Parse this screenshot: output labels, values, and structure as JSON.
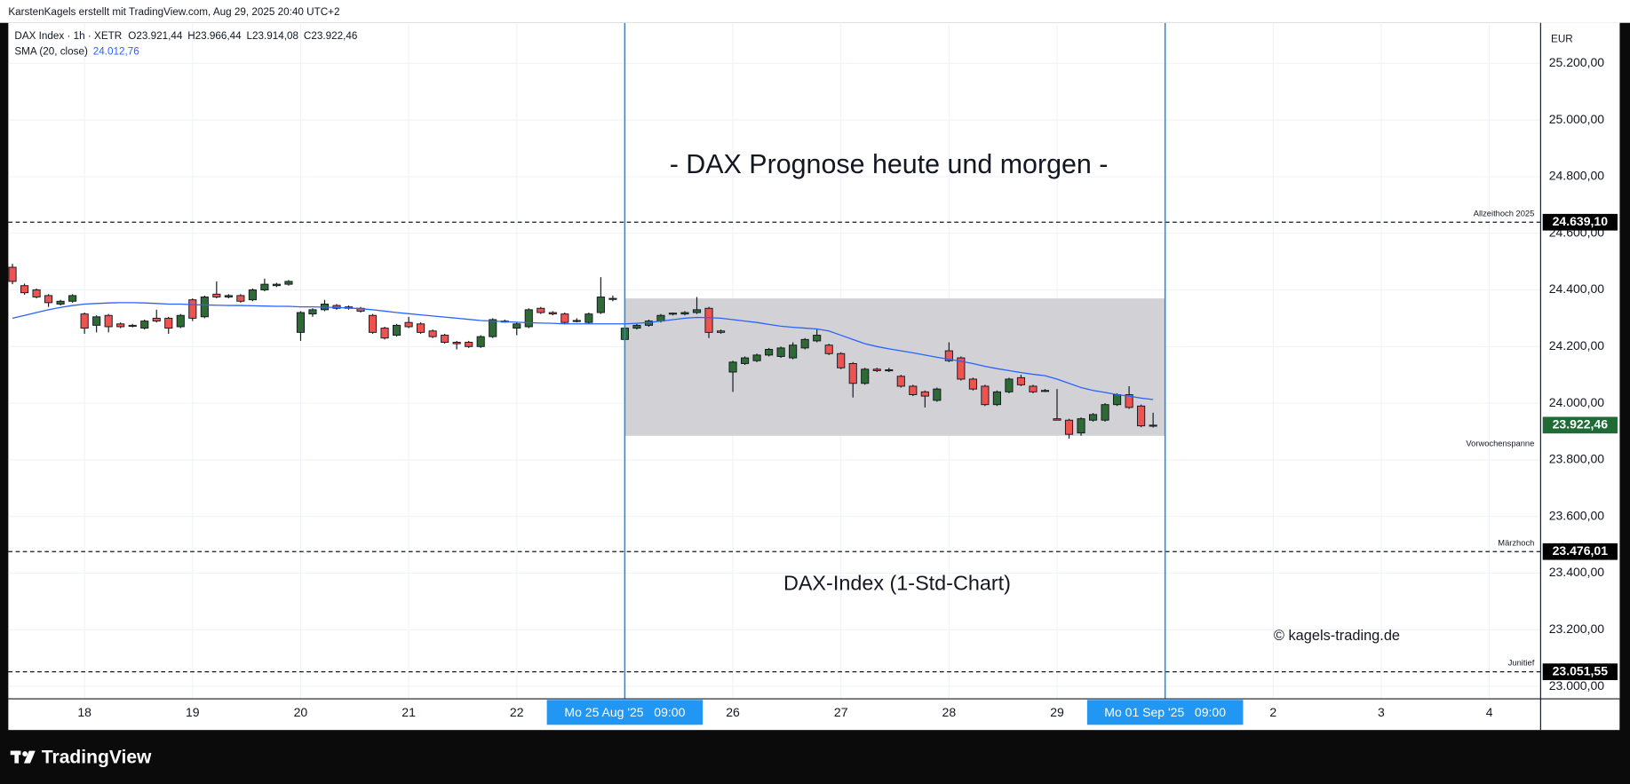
{
  "chart_data": {
    "type": "candlestick",
    "header": "KarstenKagels erstellt mit TradingView.com, Aug 29, 2025 20:40 UTC+2",
    "legend": {
      "symbol": "DAX Index · 1h · XETR",
      "open": "O23.921,44",
      "high": "H23.966,44",
      "low": "L23.914,08",
      "close": "C23.922,46",
      "sma_value": "24.012,76"
    },
    "title": "- DAX Prognose heute und morgen -",
    "subtitle": "DAX-Index (1-Std-Chart)",
    "copyright": "© kagels-trading.de",
    "currency": "EUR",
    "footer": "TradingView",
    "categories": [
      null,
      null,
      null,
      null,
      null,
      null,
      "18",
      null,
      null,
      null,
      null,
      null,
      null,
      null,
      null,
      "19",
      null,
      null,
      null,
      null,
      null,
      null,
      null,
      null,
      "20",
      null,
      null,
      null,
      null,
      null,
      null,
      null,
      null,
      "21",
      null,
      null,
      null,
      null,
      null,
      null,
      null,
      null,
      "22",
      null,
      null,
      null,
      null,
      null,
      null,
      null,
      null,
      "Mo 25 Aug '25   09:00",
      null,
      null,
      null,
      null,
      null,
      null,
      null,
      null,
      "26",
      null,
      null,
      null,
      null,
      null,
      null,
      null,
      null,
      "27",
      null,
      null,
      null,
      null,
      null,
      null,
      null,
      null,
      "28",
      null,
      null,
      null,
      null,
      null,
      null,
      null,
      null,
      "29",
      null,
      null,
      null,
      null,
      null,
      null,
      null,
      null,
      "Mo 01 Sep '25   09:00",
      null,
      null,
      null,
      null,
      null,
      null,
      null,
      null,
      "2",
      null,
      null,
      null,
      null,
      null,
      null,
      null,
      null,
      "3",
      null,
      null,
      null,
      null,
      null,
      null,
      null,
      null,
      "4",
      null,
      null,
      null,
      null
    ],
    "vertical_lines": [
      "Mo 25 Aug '25   09:00",
      "Mo 01 Sep '25   09:00"
    ],
    "open": [
      24480,
      24415,
      24400,
      24380,
      24350,
      24360,
      24315,
      24275,
      24310,
      24280,
      24275,
      24265,
      24300,
      24300,
      24270,
      24365,
      24305,
      24385,
      24375,
      24380,
      24365,
      24400,
      24415,
      24420,
      24250,
      24315,
      24330,
      24345,
      24340,
      24335,
      24310,
      24265,
      24240,
      24285,
      24280,
      24255,
      24240,
      24215,
      24215,
      24200,
      24235,
      24290,
      24265,
      24270,
      24335,
      24320,
      24315,
      24290,
      24285,
      24320,
      24370,
      24225,
      24265,
      24275,
      24290,
      24315,
      24315,
      24320,
      24335,
      24255,
      24110,
      24140,
      24150,
      24170,
      24165,
      24160,
      24195,
      24220,
      24205,
      24175,
      24140,
      24070,
      24120,
      24115,
      24095,
      24060,
      24040,
      24010,
      24185,
      24160,
      24085,
      24060,
      23995,
      24040,
      24090,
      24060,
      24045,
      23945,
      23940,
      23895,
      23940,
      23940,
      23995,
      24030,
      23990,
      23921.44,
      null,
      null,
      null,
      null,
      null,
      null,
      null,
      null,
      null,
      null,
      null,
      null,
      null,
      null,
      null,
      null,
      null,
      null,
      null,
      null,
      null,
      null,
      null,
      null,
      null,
      null,
      null,
      null,
      null,
      null,
      null,
      null
    ],
    "high": [
      24492,
      24422,
      24405,
      24385,
      24365,
      24385,
      24320,
      24310,
      24315,
      24285,
      24280,
      24295,
      24330,
      24305,
      24315,
      24370,
      24380,
      24430,
      24385,
      24385,
      24405,
      24440,
      24425,
      24435,
      24325,
      24335,
      24365,
      24350,
      24345,
      24340,
      24315,
      24270,
      24280,
      24305,
      24285,
      24260,
      24245,
      24220,
      24220,
      24240,
      24300,
      24295,
      24285,
      24335,
      24340,
      24325,
      24320,
      24300,
      24320,
      24445,
      24380,
      24270,
      24280,
      24295,
      24315,
      24320,
      24325,
      24375,
      24340,
      24260,
      24150,
      24165,
      24175,
      24195,
      24200,
      24215,
      24230,
      24260,
      24210,
      24180,
      24145,
      24125,
      24125,
      24125,
      24100,
      24065,
      24045,
      24055,
      24215,
      24165,
      24090,
      24065,
      24045,
      24090,
      24100,
      24065,
      24050,
      24050,
      23945,
      23950,
      23965,
      24000,
      24035,
      24060,
      23995,
      23966.44,
      null,
      null,
      null,
      null,
      null,
      null,
      null,
      null,
      null,
      null,
      null,
      null,
      null,
      null,
      null,
      null,
      null,
      null,
      null,
      null,
      null,
      null,
      null,
      null,
      null,
      null,
      null,
      null,
      null,
      null,
      null,
      null
    ],
    "low": [
      24420,
      24383,
      24370,
      24340,
      24345,
      24355,
      24245,
      24250,
      24250,
      24265,
      24268,
      24260,
      24285,
      24245,
      24265,
      24290,
      24300,
      24370,
      24370,
      24355,
      24360,
      24395,
      24410,
      24415,
      24220,
      24305,
      24325,
      24330,
      24330,
      24320,
      24245,
      24225,
      24235,
      24265,
      24245,
      24230,
      24210,
      24190,
      24195,
      24195,
      24230,
      24285,
      24240,
      24265,
      24315,
      24310,
      24280,
      24285,
      24280,
      24315,
      24360,
      24220,
      24260,
      24270,
      24285,
      24310,
      24310,
      24315,
      24230,
      24245,
      24040,
      24135,
      24145,
      24165,
      24160,
      24155,
      24190,
      24215,
      24170,
      24120,
      24020,
      24065,
      24110,
      24110,
      24055,
      24025,
      23985,
      24005,
      24145,
      24080,
      24045,
      23990,
      23990,
      24035,
      24060,
      24035,
      24040,
      23940,
      23875,
      23885,
      23935,
      23935,
      23990,
      23980,
      23915,
      23914.08,
      null,
      null,
      null,
      null,
      null,
      null,
      null,
      null,
      null,
      null,
      null,
      null,
      null,
      null,
      null,
      null,
      null,
      null,
      null,
      null,
      null,
      null,
      null,
      null,
      null,
      null,
      null,
      null,
      null,
      null,
      null,
      null
    ],
    "close": [
      24430,
      24390,
      24375,
      24355,
      24360,
      24380,
      24265,
      24305,
      24270,
      24270,
      24272,
      24290,
      24290,
      24265,
      24310,
      24300,
      24375,
      24375,
      24380,
      24360,
      24400,
      24420,
      24420,
      24430,
      24320,
      24330,
      24350,
      24335,
      24335,
      24325,
      24250,
      24230,
      24275,
      24270,
      24250,
      24235,
      24215,
      24210,
      24200,
      24235,
      24295,
      24290,
      24280,
      24330,
      24320,
      24315,
      24285,
      24292,
      24315,
      24375,
      24370,
      24265,
      24275,
      24290,
      24310,
      24318,
      24320,
      24330,
      24250,
      24250,
      24145,
      24160,
      24170,
      24190,
      24195,
      24205,
      24225,
      24240,
      24175,
      24125,
      24070,
      24120,
      24115,
      24118,
      24060,
      24030,
      24025,
      24050,
      24150,
      24085,
      24050,
      23995,
      24040,
      24085,
      24065,
      24040,
      24045,
      23940,
      23890,
      23945,
      23960,
      23995,
      24030,
      23985,
      23920,
      23922.46,
      null,
      null,
      null,
      null,
      null,
      null,
      null,
      null,
      null,
      null,
      null,
      null,
      null,
      null,
      null,
      null,
      null,
      null,
      null,
      null,
      null,
      null,
      null,
      null,
      null,
      null,
      null,
      null,
      null,
      null,
      null,
      null
    ],
    "series": [
      {
        "name": "SMA (20, close)",
        "color": "#2962ff",
        "values": [
          24300,
          24310,
          24320,
          24330,
          24338,
          24345,
          24350,
          24352,
          24354,
          24355,
          24355,
          24354,
          24352,
          24350,
          24350,
          24348,
          24347,
          24346,
          24345,
          24345,
          24344,
          24343,
          24342,
          24342,
          24340,
          24340,
          24339,
          24338,
          24336,
          24334,
          24330,
          24325,
          24320,
          24316,
          24312,
          24308,
          24304,
          24300,
          24296,
          24292,
          24290,
          24288,
          24286,
          24284,
          24283,
          24282,
          24280,
          24280,
          24280,
          24280,
          24280,
          24280,
          24282,
          24285,
          24290,
          24295,
          24300,
          24303,
          24302,
          24300,
          24295,
          24290,
          24285,
          24278,
          24272,
          24268,
          24265,
          24262,
          24255,
          24240,
          24225,
          24210,
          24200,
          24192,
          24185,
          24178,
          24170,
          24162,
          24155,
          24148,
          24140,
          24130,
          24122,
          24115,
          24108,
          24102,
          24097,
          24085,
          24070,
          24055,
          24045,
          24038,
          24030,
          24025,
          24018,
          24012.76,
          null,
          null,
          null,
          null,
          null,
          null,
          null,
          null,
          null,
          null,
          null,
          null,
          null,
          null,
          null,
          null,
          null,
          null,
          null,
          null,
          null,
          null,
          null,
          null,
          null,
          null,
          null,
          null,
          null,
          null,
          null,
          null
        ]
      }
    ],
    "range_box": {
      "label": "Vorwochenspanne",
      "low": 23885,
      "high": 24370
    },
    "levels": [
      {
        "name": "Allzeithoch 2025",
        "value": 24639.1,
        "label": "24.639,10"
      },
      {
        "name": "Märzhoch",
        "value": 23476.01,
        "label": "23.476,01"
      },
      {
        "name": "Junitief",
        "value": 23051.55,
        "label": "23.051,55"
      }
    ],
    "last_price": {
      "value": 23922.46,
      "label": "23.922,46"
    },
    "up_color": "#2e6b34",
    "down_color": "#ef5350",
    "ylim": [
      22956,
      25343
    ],
    "yticks": [
      {
        "value": 23000,
        "label": "23.000,00"
      },
      {
        "value": 23200,
        "label": "23.200,00"
      },
      {
        "value": 23400,
        "label": "23.400,00"
      },
      {
        "value": 23600,
        "label": "23.600,00"
      },
      {
        "value": 23800,
        "label": "23.800,00"
      },
      {
        "value": 24000,
        "label": "24.000,00"
      },
      {
        "value": 24200,
        "label": "24.200,00"
      },
      {
        "value": 24400,
        "label": "24.400,00"
      },
      {
        "value": 24600,
        "label": "24.600,00"
      },
      {
        "value": 24800,
        "label": "24.800,00"
      },
      {
        "value": 25000,
        "label": "25.000,00"
      },
      {
        "value": 25200,
        "label": "25.200,00"
      }
    ],
    "grid": true
  }
}
